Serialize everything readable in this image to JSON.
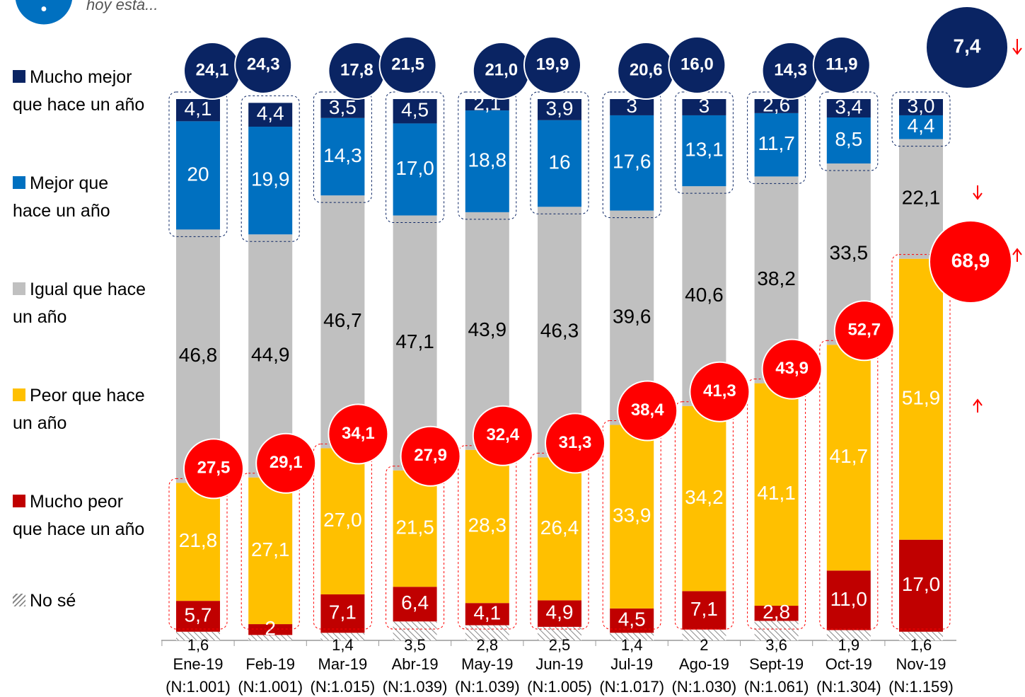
{
  "chart_data": {
    "type": "stacked_bar",
    "subtitle": "hoy está...",
    "categories": [
      "Ene-19",
      "Feb-19",
      "Mar-19",
      "Abr-19",
      "May-19",
      "Jun-19",
      "Jul-19",
      "Ago-19",
      "Sept-19",
      "Oct-19",
      "Nov-19"
    ],
    "sample_sizes": [
      "(N:1.001)",
      "(N:1.001)",
      "(N:1.015)",
      "(N:1.039)",
      "(N:1.039)",
      "(N:1.005)",
      "(N:1.017)",
      "(N:1.030)",
      "(N:1.061)",
      "(N:1.304)",
      "(N:1.159)"
    ],
    "series": [
      {
        "name": "No sé",
        "color": "hatch",
        "label_color": "#000000",
        "values": [
          1.6,
          1.0,
          1.4,
          3.5,
          2.8,
          2.5,
          1.4,
          2,
          3.6,
          1.9,
          1.6
        ],
        "value_labels": [
          "1,6",
          null,
          "1,4",
          "3,5",
          "2,8",
          "2,5",
          "1,4",
          "2",
          "3,6",
          "1,9",
          "1,6"
        ]
      },
      {
        "name": "Mucho peor que hace un año",
        "color": "#c00000",
        "label_color": "#ffffff",
        "values": [
          5.7,
          2,
          7.1,
          6.4,
          4.1,
          4.9,
          4.5,
          7.1,
          2.8,
          11.0,
          17.0
        ],
        "value_labels": [
          "5,7",
          "2",
          "7,1",
          "6,4",
          "4,1",
          "4,9",
          "4,5",
          "7,1",
          "2,8",
          "11,0",
          "17,0"
        ]
      },
      {
        "name": "Peor que hace un año",
        "color": "#ffc000",
        "label_color": "#ffffff",
        "values": [
          21.8,
          27.1,
          27.0,
          21.5,
          28.3,
          26.4,
          33.9,
          34.2,
          41.1,
          41.7,
          51.9
        ],
        "value_labels": [
          "21,8",
          "27,1",
          "27,0",
          "21,5",
          "28,3",
          "26,4",
          "33,9",
          "34,2",
          "41,1",
          "41,7",
          "51,9"
        ]
      },
      {
        "name": "Igual que hace un año",
        "color": "#c0c0c0",
        "label_color": "#000000",
        "values": [
          46.8,
          44.9,
          46.7,
          47.1,
          43.9,
          46.3,
          39.6,
          40.6,
          38.2,
          33.5,
          22.1
        ],
        "value_labels": [
          "46,8",
          "44,9",
          "46,7",
          "47,1",
          "43,9",
          "46,3",
          "39,6",
          "40,6",
          "38,2",
          "33,5",
          "22,1"
        ]
      },
      {
        "name": "Mejor que hace un año",
        "color": "#0070c0",
        "label_color": "#ffffff",
        "values": [
          20,
          19.9,
          14.3,
          17.0,
          18.8,
          16,
          17.6,
          13.1,
          11.7,
          8.5,
          4.4
        ],
        "value_labels": [
          "20",
          "19,9",
          "14,3",
          "17,0",
          "18,8",
          "16",
          "17,6",
          "13,1",
          "11,7",
          "8,5",
          "4,4"
        ]
      },
      {
        "name": "Mucho mejor que hace un año",
        "color": "#0a2463",
        "label_color": "#ffffff",
        "values": [
          4.1,
          4.4,
          3.5,
          4.5,
          2.1,
          3.9,
          3,
          3,
          2.6,
          3.4,
          3.0
        ],
        "value_labels": [
          "4,1",
          "4,4",
          "3,5",
          "4,5",
          "2,1",
          "3,9",
          "3",
          "3",
          "2,6",
          "3,4",
          "3,0"
        ]
      }
    ],
    "positive_totals": {
      "color": "#0a2463",
      "values": [
        24.1,
        24.3,
        17.8,
        21.5,
        21.0,
        19.9,
        20.6,
        16.0,
        14.3,
        11.9,
        7.4
      ],
      "value_labels": [
        "24,1",
        "24,3",
        "17,8",
        "21,5",
        "21,0",
        "19,9",
        "20,6",
        "16,0",
        "14,3",
        "11,9",
        "7,4"
      ]
    },
    "negative_totals": {
      "color": "#ff0000",
      "values": [
        27.5,
        29.1,
        34.1,
        27.9,
        32.4,
        31.3,
        38.4,
        41.3,
        43.9,
        52.7,
        68.9
      ],
      "value_labels": [
        "27,5",
        "29,1",
        "34,1",
        "27,9",
        "32,4",
        "31,3",
        "38,4",
        "41,3",
        "43,9",
        "52,7",
        "68,9"
      ]
    }
  }
}
